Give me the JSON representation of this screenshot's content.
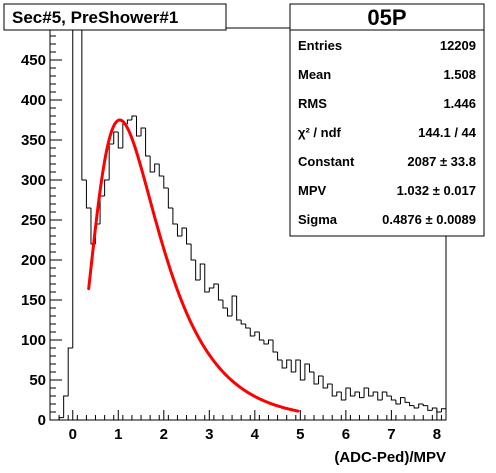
{
  "chart_data": {
    "type": "bar",
    "title": "Sec#5, PreShower#1",
    "xlabel": "(ADC-Ped)/MPV",
    "ylabel": "",
    "xlim": [
      -0.5,
      8.2
    ],
    "ylim": [
      0,
      490
    ],
    "x_ticks": [
      0,
      1,
      2,
      3,
      4,
      5,
      6,
      7,
      8
    ],
    "y_ticks": [
      0,
      50,
      100,
      150,
      200,
      250,
      300,
      350,
      400,
      450
    ],
    "bin_width": 0.1,
    "histogram": {
      "x_start": -0.3,
      "values": [
        3,
        30,
        90,
        490,
        490,
        300,
        265,
        220,
        245,
        280,
        300,
        345,
        360,
        340,
        370,
        375,
        380,
        355,
        365,
        330,
        310,
        320,
        305,
        290,
        265,
        245,
        230,
        240,
        220,
        200,
        175,
        195,
        160,
        165,
        170,
        150,
        140,
        130,
        155,
        125,
        120,
        115,
        105,
        110,
        100,
        95,
        100,
        85,
        75,
        65,
        75,
        60,
        75,
        50,
        70,
        60,
        45,
        55,
        40,
        45,
        30,
        35,
        25,
        40,
        30,
        35,
        28,
        40,
        30,
        35,
        25,
        35,
        30,
        25,
        20,
        28,
        22,
        18,
        15,
        20,
        18,
        12,
        15,
        10,
        14,
        12,
        10,
        8,
        12,
        10,
        8,
        6,
        9,
        7,
        5,
        8,
        6,
        5,
        4,
        6,
        3,
        5,
        4,
        3,
        5,
        2,
        3,
        2
      ]
    },
    "fit": {
      "color": "#ff0000",
      "x_range": [
        0.35,
        4.95
      ],
      "mpv": 1.032,
      "sigma": 0.4876,
      "constant": 2087
    },
    "stats": {
      "title": "05P",
      "entries": [
        {
          "label": "Entries",
          "value": "12209"
        },
        {
          "label": "Mean",
          "value": "1.508"
        },
        {
          "label": "RMS",
          "value": "1.446"
        },
        {
          "label": "χ² / ndf",
          "value": "144.1 / 44"
        },
        {
          "label": "Constant",
          "value": "2087 ± 33.8"
        },
        {
          "label": "MPV",
          "value": "1.032 ± 0.017"
        },
        {
          "label": "Sigma",
          "value": "0.4876 ± 0.0089"
        }
      ]
    },
    "grid": false,
    "legend": "top-right"
  }
}
